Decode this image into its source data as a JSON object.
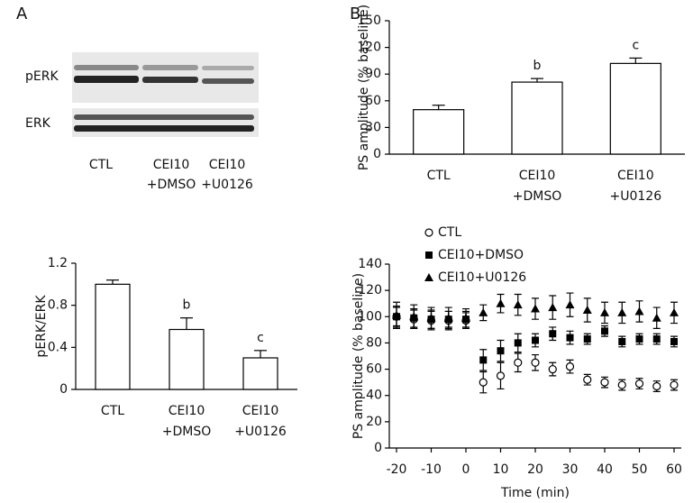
{
  "panel_labels": [
    "A",
    "B"
  ],
  "blot": {
    "rows": [
      "pERK",
      "ERK"
    ],
    "lanes": [
      [
        "CTL"
      ],
      [
        "CEI10",
        "+DMSO"
      ],
      [
        "CEI10",
        "+U0126"
      ]
    ]
  },
  "chart_data": [
    {
      "type": "bar",
      "y_label": "pERK/ERK",
      "categories": [
        [
          "CTL"
        ],
        [
          "CEI10",
          "+DMSO"
        ],
        [
          "CEI10",
          "+U0126"
        ]
      ],
      "values": [
        1.0,
        0.57,
        0.3
      ],
      "errors": [
        0.04,
        0.11,
        0.07
      ],
      "annotations": [
        null,
        "b",
        "c"
      ],
      "color": "#ffffff",
      "ylim": [
        0,
        1.2
      ],
      "yticks": [
        0,
        0.4,
        0.8,
        1.2
      ]
    },
    {
      "type": "bar",
      "y_label": "PS amplitude (% baseline)",
      "categories": [
        [
          "CTL"
        ],
        [
          "CEI10",
          "+DMSO"
        ],
        [
          "CEI10",
          "+U0126"
        ]
      ],
      "values": [
        50,
        81,
        102
      ],
      "errors": [
        5,
        4,
        6
      ],
      "annotations": [
        null,
        "b",
        "c"
      ],
      "color": "#ffffff",
      "ylim": [
        0,
        150
      ],
      "yticks": [
        0,
        30,
        60,
        90,
        120,
        150
      ]
    },
    {
      "type": "scatter",
      "x_label": "Time (min)",
      "y_label": "PS amplitude (% baseline)",
      "x": [
        -20,
        -15,
        -10,
        -5,
        0,
        5,
        10,
        15,
        20,
        25,
        30,
        35,
        40,
        45,
        50,
        55,
        60
      ],
      "series": [
        {
          "name": "CTL",
          "marker": "circle",
          "color": "#000000",
          "values": [
            100,
            98,
            97,
            97,
            97,
            50,
            55,
            65,
            65,
            60,
            62,
            52,
            50,
            48,
            49,
            47,
            48
          ],
          "errors": [
            8,
            7,
            7,
            7,
            6,
            8,
            10,
            7,
            6,
            5,
            5,
            4,
            4,
            4,
            4,
            4,
            4
          ]
        },
        {
          "name": "CEI10+DMSO",
          "marker": "square",
          "color": "#000000",
          "values": [
            100,
            99,
            98,
            98,
            98,
            67,
            74,
            80,
            82,
            87,
            84,
            83,
            89,
            81,
            83,
            83,
            81
          ],
          "errors": [
            7,
            7,
            7,
            6,
            6,
            8,
            8,
            7,
            5,
            5,
            5,
            4,
            4,
            4,
            4,
            4,
            4
          ]
        },
        {
          "name": "CEI10+U0126",
          "marker": "triangle",
          "color": "#000000",
          "values": [
            101,
            100,
            99,
            99,
            99,
            103,
            110,
            109,
            106,
            107,
            109,
            105,
            103,
            103,
            104,
            99,
            103
          ],
          "errors": [
            10,
            9,
            8,
            8,
            7,
            6,
            7,
            8,
            8,
            9,
            9,
            9,
            8,
            8,
            8,
            8,
            8
          ]
        }
      ],
      "xlim": [
        -20,
        60
      ],
      "xticks": [
        -20,
        -10,
        0,
        10,
        20,
        30,
        40,
        50,
        60
      ],
      "ylim": [
        0,
        140
      ],
      "yticks": [
        0,
        20,
        40,
        60,
        80,
        100,
        120,
        140
      ]
    }
  ]
}
